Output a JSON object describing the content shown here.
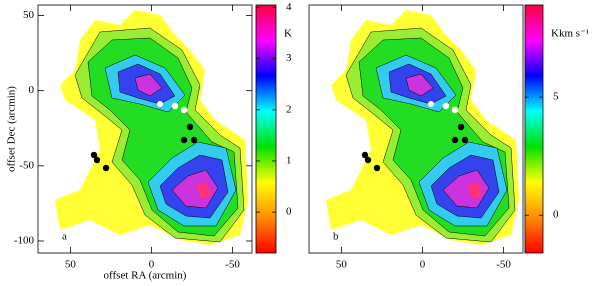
{
  "chart_data": [
    {
      "type": "heatmap",
      "xlabel": "offset RA (arcmin)",
      "ylabel": "offset Dec (arcmin)",
      "panel_label": "a",
      "xlim": [
        70,
        -62
      ],
      "ylim": [
        -108,
        57
      ],
      "xticks": [
        50,
        0,
        -50
      ],
      "yticks": [
        50,
        0,
        -50,
        -100
      ],
      "colorbar": {
        "label": "K",
        "clim": [
          -0.8,
          4.05
        ],
        "ticks": [
          0,
          1,
          2,
          3,
          4
        ]
      },
      "colormap": [
        "#ff0000",
        "#ff8c00",
        "#ffff00",
        "#00e000",
        "#00ffff",
        "#0000ff",
        "#ff00ff",
        "#ff0040"
      ]
    },
    {
      "type": "heatmap",
      "panel_label": "b",
      "xlim": [
        70,
        -62
      ],
      "ylim": [
        -108,
        57
      ],
      "xticks": [
        50,
        0,
        -50
      ],
      "colorbar": {
        "label": "Kkm s⁻¹",
        "clim": [
          -1.6,
          8.9
        ],
        "ticks": [
          0,
          5
        ]
      },
      "colormap": [
        "#ff0000",
        "#ff8c00",
        "#ffff00",
        "#00e000",
        "#00ffff",
        "#0000ff",
        "#ff00ff",
        "#ff0040"
      ]
    }
  ]
}
